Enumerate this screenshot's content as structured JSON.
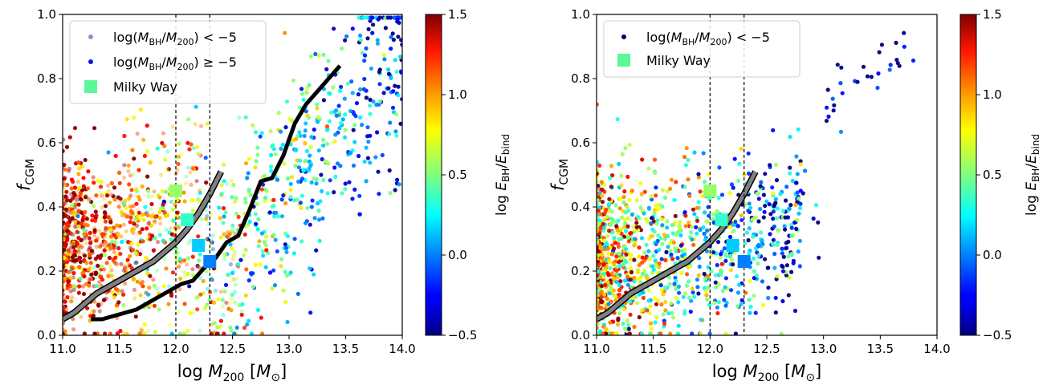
{
  "colors": {
    "colormap": "jet",
    "median_line": "#000000",
    "relation_line": "#808080",
    "vline": "#000000",
    "legend_low_ratio_marker": "#8e8ed6",
    "legend_high_ratio_marker": "#0a14e6",
    "milky_way_marker": "#5cf79a"
  },
  "chart_data": [
    {
      "panel": "left",
      "type": "scatter",
      "xlabel": "log M200 [M⊙]",
      "ylabel": "fCGM",
      "xlim": [
        11.0,
        14.0
      ],
      "ylim": [
        0.0,
        1.0
      ],
      "xticks": [
        "11.0",
        "11.5",
        "12.0",
        "12.5",
        "13.0",
        "13.5",
        "14.0"
      ],
      "yticks": [
        "0.0",
        "0.2",
        "0.4",
        "0.6",
        "0.8",
        "1.0"
      ],
      "colorbar": {
        "label": "log EBH/Ebind",
        "range": [
          -0.5,
          1.5
        ],
        "ticks": [
          "−0.5",
          "0.0",
          "0.5",
          "1.0",
          "1.5"
        ]
      },
      "legend": {
        "placement": "upper-left",
        "entries": [
          {
            "label": "log(MBH/M200) < −5",
            "marker": "small-dot-faded"
          },
          {
            "label": "log(MBH/M200) ≥ −5",
            "marker": "small-dot"
          },
          {
            "label": "Milky Way",
            "marker": "square"
          }
        ]
      },
      "vlines_x": [
        12.0,
        12.3
      ],
      "median_curve": {
        "x": [
          11.25,
          11.35,
          11.45,
          11.55,
          11.65,
          11.75,
          11.85,
          11.95,
          12.05,
          12.15,
          12.25,
          12.35,
          12.45,
          12.55,
          12.65,
          12.75,
          12.85,
          12.95,
          13.05,
          13.15,
          13.25,
          13.35,
          13.45
        ],
        "y": [
          0.05,
          0.05,
          0.06,
          0.07,
          0.08,
          0.1,
          0.12,
          0.14,
          0.16,
          0.17,
          0.21,
          0.24,
          0.29,
          0.31,
          0.39,
          0.48,
          0.49,
          0.56,
          0.66,
          0.72,
          0.76,
          0.8,
          0.84
        ]
      },
      "relation_curve": {
        "x": [
          11.0,
          11.1,
          11.2,
          11.3,
          11.4,
          11.5,
          11.6,
          11.7,
          11.8,
          11.9,
          12.0,
          12.1,
          12.2,
          12.3,
          12.4
        ],
        "y": [
          0.05,
          0.07,
          0.1,
          0.13,
          0.15,
          0.17,
          0.19,
          0.21,
          0.23,
          0.26,
          0.29,
          0.33,
          0.38,
          0.44,
          0.51
        ]
      },
      "milky_way_points": [
        {
          "x": 12.0,
          "y": 0.45,
          "c": 0.55
        },
        {
          "x": 12.1,
          "y": 0.36,
          "c": 0.35
        },
        {
          "x": 12.2,
          "y": 0.28,
          "c": 0.15
        },
        {
          "x": 12.3,
          "y": 0.23,
          "c": 0.0
        }
      ]
    },
    {
      "panel": "right",
      "type": "scatter",
      "xlabel": "log M200 [M⊙]",
      "ylabel": "fCGM",
      "xlim": [
        11.0,
        14.0
      ],
      "ylim": [
        0.0,
        1.0
      ],
      "xticks": [
        "11.0",
        "11.5",
        "12.0",
        "12.5",
        "13.0",
        "13.5",
        "14.0"
      ],
      "yticks": [
        "0.0",
        "0.2",
        "0.4",
        "0.6",
        "0.8",
        "1.0"
      ],
      "colorbar": {
        "label": "log EBH/Ebind",
        "range": [
          -0.5,
          1.5
        ],
        "ticks": [
          "−0.5",
          "0.0",
          "0.5",
          "1.0",
          "1.5"
        ]
      },
      "legend": {
        "placement": "upper-left",
        "entries": [
          {
            "label": "log(MBH/M200) < −5",
            "marker": "small-dot-dark"
          },
          {
            "label": "Milky Way",
            "marker": "square"
          }
        ]
      },
      "vlines_x": [
        12.0,
        12.3
      ],
      "relation_curve": {
        "x": [
          11.0,
          11.1,
          11.2,
          11.3,
          11.4,
          11.5,
          11.6,
          11.7,
          11.8,
          11.9,
          12.0,
          12.1,
          12.2,
          12.3,
          12.4
        ],
        "y": [
          0.05,
          0.07,
          0.1,
          0.13,
          0.15,
          0.17,
          0.19,
          0.21,
          0.23,
          0.26,
          0.29,
          0.33,
          0.38,
          0.44,
          0.51
        ]
      },
      "milky_way_points": [
        {
          "x": 12.0,
          "y": 0.45,
          "c": 0.55
        },
        {
          "x": 12.1,
          "y": 0.36,
          "c": 0.35
        },
        {
          "x": 12.2,
          "y": 0.28,
          "c": 0.15
        },
        {
          "x": 12.3,
          "y": 0.23,
          "c": 0.0
        }
      ]
    }
  ]
}
